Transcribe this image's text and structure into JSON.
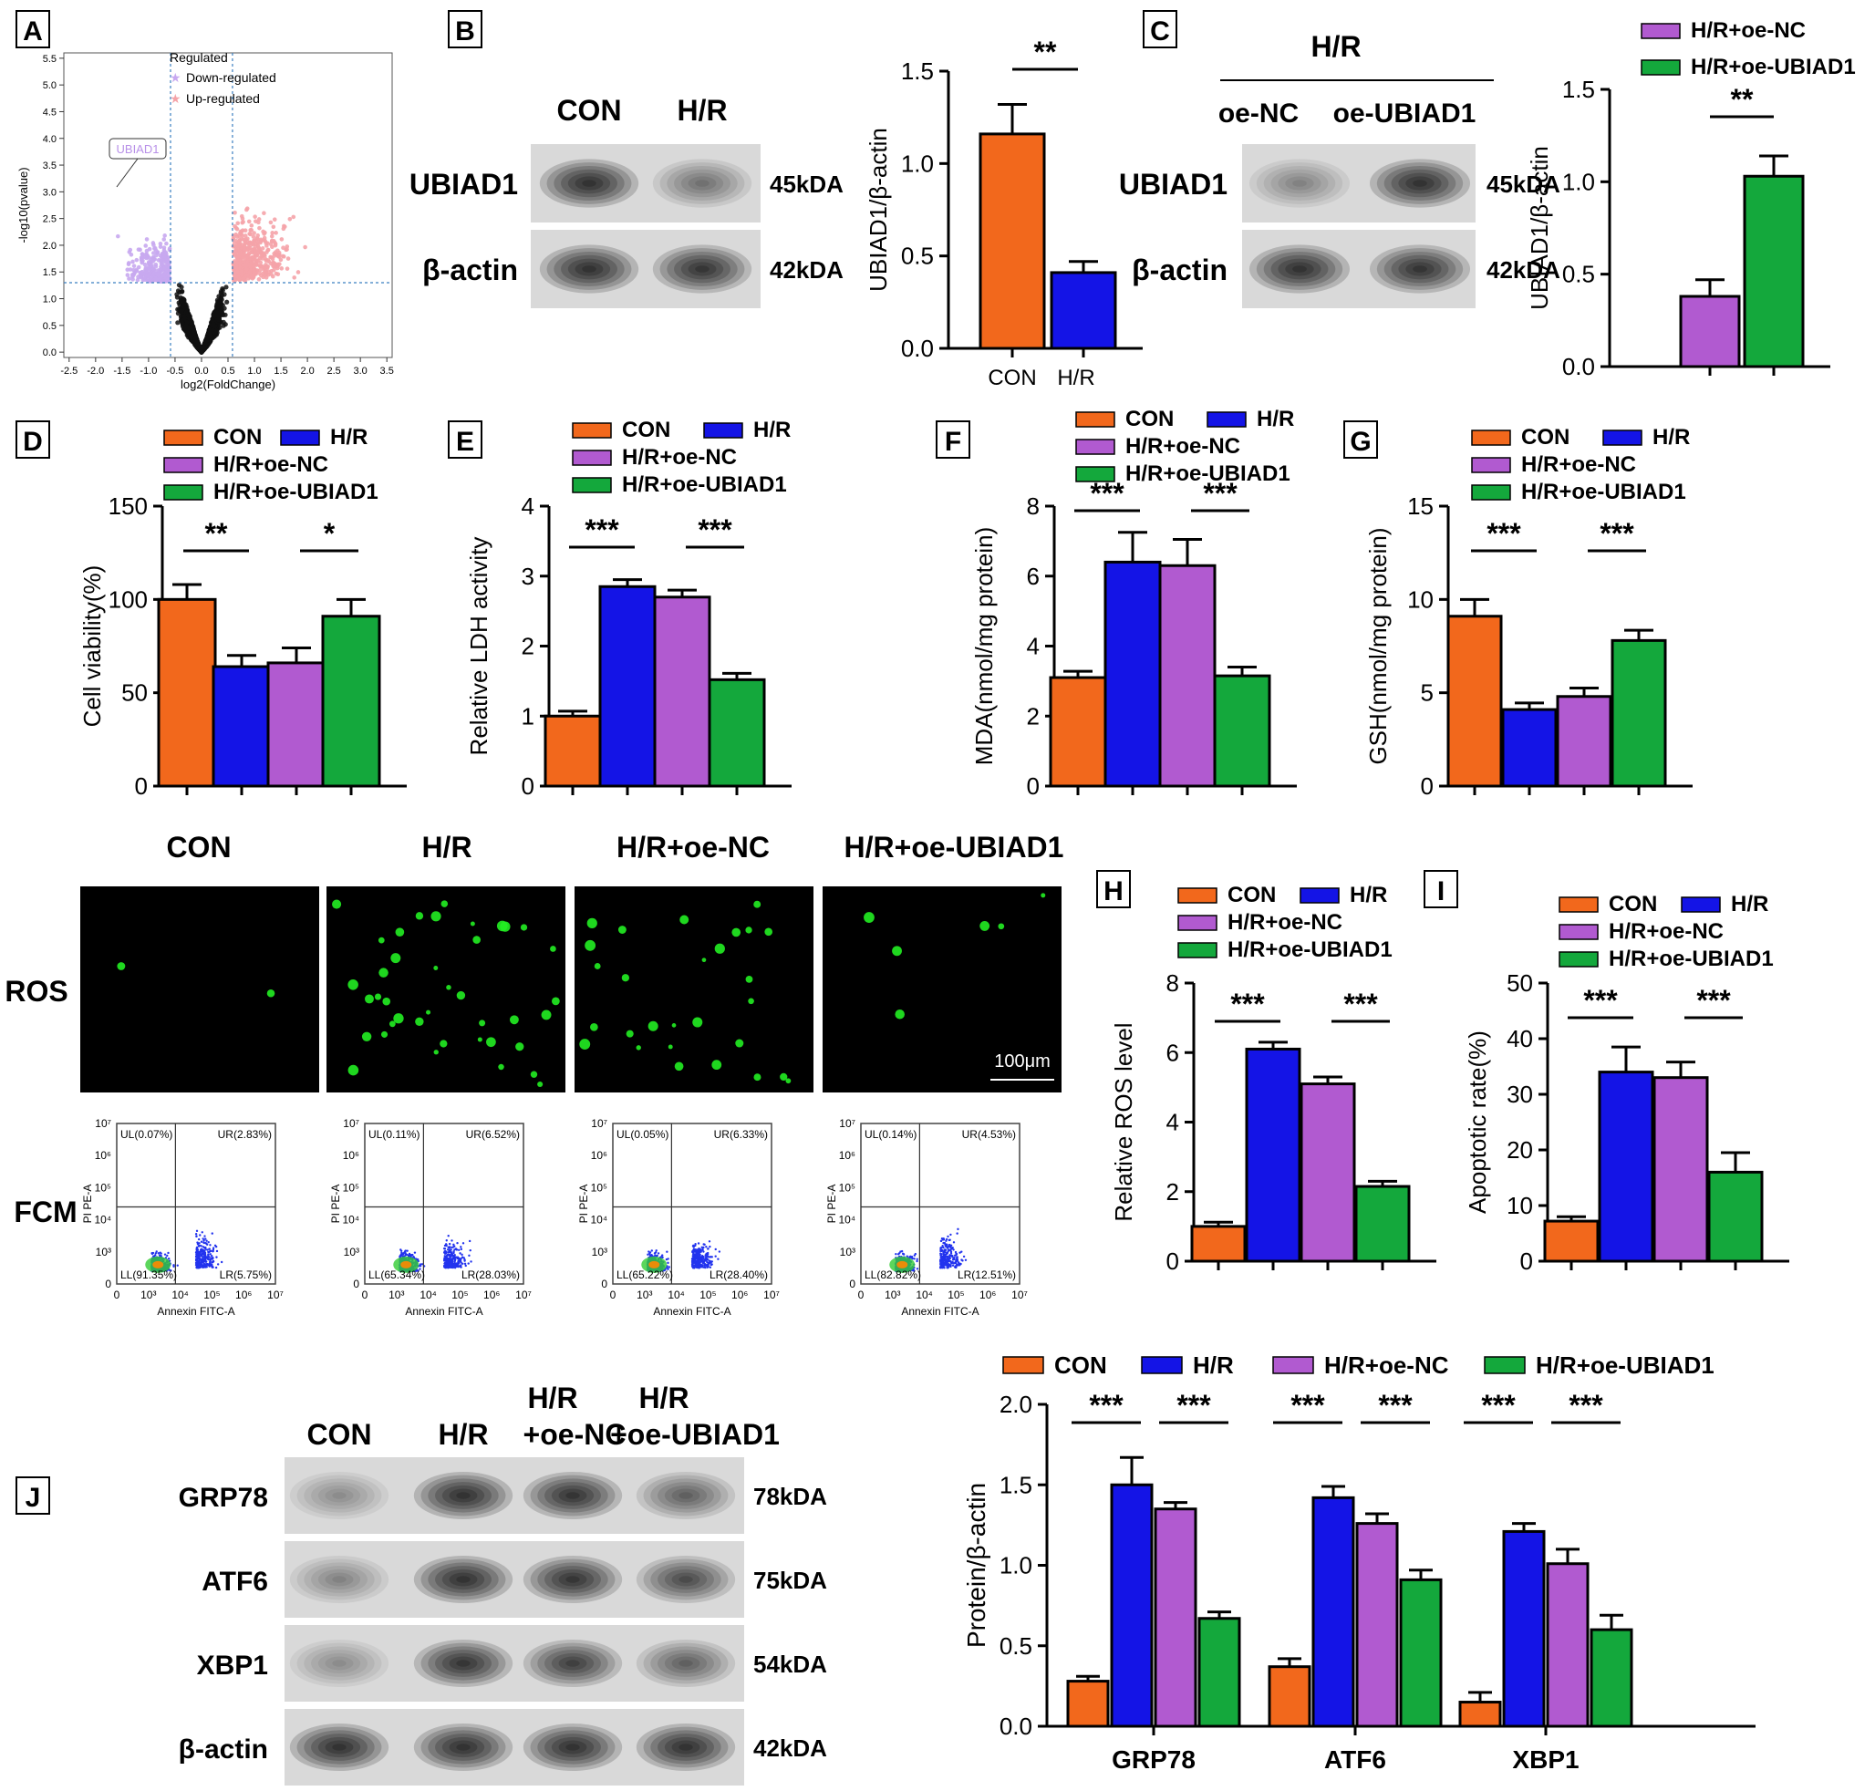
{
  "colors": {
    "CON": "#f2681c",
    "H/R": "#1414e6",
    "H/R+oe-NC": "#b15ad0",
    "H/R+oe-UBIAD1": "#14a83c",
    "up": "#f5a3a8",
    "down": "#c8a8f0",
    "black": "#000000",
    "fluor": "#22ee22"
  },
  "panels": {
    "A": "A",
    "B": "B",
    "C": "C",
    "D": "D",
    "E": "E",
    "F": "F",
    "G": "G",
    "H": "H",
    "I": "I",
    "J": "J"
  },
  "volcano": {
    "xlabel": "log2(FoldChange)",
    "ylabel": "-log10(pvalue)",
    "xticks": [
      "-2.5",
      "-2.0",
      "-1.5",
      "-1.0",
      "-0.5",
      "0.0",
      "0.5",
      "1.0",
      "1.5",
      "2.0",
      "2.5",
      "3.0",
      "3.5"
    ],
    "yticks": [
      "0.0",
      "0.5",
      "1.0",
      "1.5",
      "2.0",
      "2.5",
      "3.0",
      "3.5",
      "4.0",
      "4.5",
      "5.0",
      "5.5"
    ],
    "xlim": [
      -2.6,
      3.6
    ],
    "ylim": [
      -0.1,
      5.6
    ],
    "legend_title": "Regulated",
    "legend": [
      "Down-regulated",
      "Up-regulated"
    ],
    "gene_label": "UBIAD1",
    "thresholds": {
      "fc": [
        -0.585,
        0.585
      ],
      "p": 1.3
    }
  },
  "blotB": {
    "lanes": [
      "CON",
      "H/R"
    ],
    "rows": [
      {
        "name": "UBIAD1",
        "kda": "45kDA",
        "int": [
          0.95,
          0.45
        ]
      },
      {
        "name": "β-actin",
        "kda": "42kDA",
        "int": [
          0.95,
          0.9
        ]
      }
    ]
  },
  "blotC": {
    "header": "H/R",
    "lanes": [
      "oe-NC",
      "oe-UBIAD1"
    ],
    "rows": [
      {
        "name": "UBIAD1",
        "kda": "45kDA",
        "int": [
          0.35,
          0.95
        ]
      },
      {
        "name": "β-actin",
        "kda": "42kDA",
        "int": [
          0.95,
          0.92
        ]
      }
    ]
  },
  "blotJ": {
    "lanes": [
      "CON",
      "H/R",
      "H/R\n+oe-NC",
      "H/R\n+oe-UBIAD1"
    ],
    "rows": [
      {
        "name": "GRP78",
        "kda": "78kDA",
        "int": [
          0.3,
          0.95,
          0.92,
          0.55
        ]
      },
      {
        "name": "ATF6",
        "kda": "75kDA",
        "int": [
          0.35,
          0.95,
          0.9,
          0.7
        ]
      },
      {
        "name": "XBP1",
        "kda": "54kDA",
        "int": [
          0.3,
          0.9,
          0.8,
          0.55
        ]
      },
      {
        "name": "β-actin",
        "kda": "42kDA",
        "int": [
          0.95,
          0.95,
          0.95,
          0.95
        ]
      }
    ]
  },
  "ros": {
    "titles": [
      "CON",
      "H/R",
      "H/R+oe-NC",
      "H/R+oe-UBIAD1"
    ],
    "row_label": "ROS",
    "scale": "100μm"
  },
  "fcm": {
    "row_label": "FCM",
    "xlabel": "Annexin FITC-A",
    "ylabel": "PI PE-A",
    "ticks": [
      "0",
      "10³",
      "10⁴",
      "10⁵",
      "10⁶",
      "10⁷"
    ],
    "plots": [
      {
        "UL": "UL(0.07%)",
        "UR": "UR(2.83%)",
        "LL": "LL(91.35%)",
        "LR": "LR(5.75%)"
      },
      {
        "UL": "UL(0.11%)",
        "UR": "UR(6.52%)",
        "LL": "LL(65.34%)",
        "LR": "LR(28.03%)"
      },
      {
        "UL": "UL(0.05%)",
        "UR": "UR(6.33%)",
        "LL": "LL(65.22%)",
        "LR": "LR(28.40%)"
      },
      {
        "UL": "UL(0.14%)",
        "UR": "UR(4.53%)",
        "LL": "LL(82.82%)",
        "LR": "LR(12.51%)"
      }
    ]
  },
  "chart_data": [
    {
      "id": "B",
      "type": "bar",
      "categories": [
        "CON",
        "H/R"
      ],
      "values": [
        1.16,
        0.41
      ],
      "errors": [
        0.16,
        0.06
      ],
      "ylabel": "UBIAD1/β-actin",
      "ylim": [
        0,
        1.5
      ],
      "yticks": [
        "0.0",
        "0.5",
        "1.0",
        "1.5"
      ],
      "sig": [
        {
          "text": "**",
          "a": 0,
          "b": 1
        }
      ]
    },
    {
      "id": "C",
      "type": "bar",
      "categories": [
        "H/R+oe-NC",
        "H/R+oe-UBIAD1"
      ],
      "values": [
        0.38,
        1.03
      ],
      "errors": [
        0.09,
        0.11
      ],
      "ylabel": "UBIAD1/β-actin",
      "ylim": [
        0,
        1.5
      ],
      "yticks": [
        "0.0",
        "0.5",
        "1.0",
        "1.5"
      ],
      "legend": [
        "H/R+oe-NC",
        "H/R+oe-UBIAD1"
      ],
      "sig": [
        {
          "text": "**",
          "a": 0,
          "b": 1
        }
      ]
    },
    {
      "id": "D",
      "type": "bar",
      "categories": [
        "CON",
        "H/R",
        "H/R+oe-NC",
        "H/R+oe-UBIAD1"
      ],
      "values": [
        100,
        64,
        66,
        91
      ],
      "errors": [
        8,
        6,
        8,
        9
      ],
      "ylabel": "Cell viability(%)",
      "ylim": [
        0,
        150
      ],
      "yticks": [
        "0",
        "50",
        "100",
        "150"
      ],
      "legend": [
        "CON",
        "H/R",
        "H/R+oe-NC",
        "H/R+oe-UBIAD1"
      ],
      "sig": [
        {
          "text": "**",
          "a": 0,
          "b": 1
        },
        {
          "text": "*",
          "a": 2,
          "b": 3
        }
      ]
    },
    {
      "id": "E",
      "type": "bar",
      "categories": [
        "CON",
        "H/R",
        "H/R+oe-NC",
        "H/R+oe-UBIAD1"
      ],
      "values": [
        1.0,
        2.85,
        2.7,
        1.52
      ],
      "errors": [
        0.07,
        0.1,
        0.1,
        0.09
      ],
      "ylabel": "Relative LDH activity",
      "ylim": [
        0,
        4
      ],
      "yticks": [
        "0",
        "1",
        "2",
        "3",
        "4"
      ],
      "legend": [
        "CON",
        "H/R",
        "H/R+oe-NC",
        "H/R+oe-UBIAD1"
      ],
      "sig": [
        {
          "text": "***",
          "a": 0,
          "b": 1
        },
        {
          "text": "***",
          "a": 2,
          "b": 3
        }
      ]
    },
    {
      "id": "F",
      "type": "bar",
      "categories": [
        "CON",
        "H/R",
        "H/R+oe-NC",
        "H/R+oe-UBIAD1"
      ],
      "values": [
        3.1,
        6.4,
        6.3,
        3.15
      ],
      "errors": [
        0.18,
        0.85,
        0.75,
        0.25
      ],
      "ylabel": "MDA(nmol/mg protein)",
      "ylim": [
        0,
        8
      ],
      "yticks": [
        "0",
        "2",
        "4",
        "6",
        "8"
      ],
      "legend": [
        "CON",
        "H/R",
        "H/R+oe-NC",
        "H/R+oe-UBIAD1"
      ],
      "sig": [
        {
          "text": "***",
          "a": 0,
          "b": 1
        },
        {
          "text": "***",
          "a": 2,
          "b": 3
        }
      ]
    },
    {
      "id": "G",
      "type": "bar",
      "categories": [
        "CON",
        "H/R",
        "H/R+oe-NC",
        "H/R+oe-UBIAD1"
      ],
      "values": [
        9.1,
        4.1,
        4.8,
        7.8
      ],
      "errors": [
        0.9,
        0.35,
        0.45,
        0.55
      ],
      "ylabel": "GSH(nmol/mg protein)",
      "ylim": [
        0,
        15
      ],
      "yticks": [
        "0",
        "5",
        "10",
        "15"
      ],
      "legend": [
        "CON",
        "H/R",
        "H/R+oe-NC",
        "H/R+oe-UBIAD1"
      ],
      "sig": [
        {
          "text": "***",
          "a": 0,
          "b": 1
        },
        {
          "text": "***",
          "a": 2,
          "b": 3
        }
      ]
    },
    {
      "id": "H",
      "type": "bar",
      "categories": [
        "CON",
        "H/R",
        "H/R+oe-NC",
        "H/R+oe-UBIAD1"
      ],
      "values": [
        1.0,
        6.1,
        5.1,
        2.15
      ],
      "errors": [
        0.12,
        0.2,
        0.2,
        0.15
      ],
      "ylabel": "Relative ROS level",
      "ylim": [
        0,
        8
      ],
      "yticks": [
        "0",
        "2",
        "4",
        "6",
        "8"
      ],
      "legend": [
        "CON",
        "H/R",
        "H/R+oe-NC",
        "H/R+oe-UBIAD1"
      ],
      "sig": [
        {
          "text": "***",
          "a": 0,
          "b": 1
        },
        {
          "text": "***",
          "a": 2,
          "b": 3
        }
      ]
    },
    {
      "id": "I",
      "type": "bar",
      "categories": [
        "CON",
        "H/R",
        "H/R+oe-NC",
        "H/R+oe-UBIAD1"
      ],
      "values": [
        7.2,
        34,
        33,
        16
      ],
      "errors": [
        0.8,
        4.5,
        2.8,
        3.5
      ],
      "ylabel": "Apoptotic rate(%)",
      "ylim": [
        0,
        50
      ],
      "yticks": [
        "0",
        "10",
        "20",
        "30",
        "40",
        "50"
      ],
      "legend": [
        "CON",
        "H/R",
        "H/R+oe-NC",
        "H/R+oe-UBIAD1"
      ],
      "sig": [
        {
          "text": "***",
          "a": 0,
          "b": 1
        },
        {
          "text": "***",
          "a": 2,
          "b": 3
        }
      ]
    },
    {
      "id": "J",
      "type": "bar",
      "groups": [
        "GRP78",
        "ATF6",
        "XBP1"
      ],
      "series": [
        {
          "name": "CON",
          "values": [
            0.28,
            0.37,
            0.15
          ],
          "errors": [
            0.03,
            0.05,
            0.06
          ]
        },
        {
          "name": "H/R",
          "values": [
            1.5,
            1.42,
            1.21
          ],
          "errors": [
            0.17,
            0.07,
            0.05
          ]
        },
        {
          "name": "H/R+oe-NC",
          "values": [
            1.35,
            1.26,
            1.01
          ],
          "errors": [
            0.04,
            0.06,
            0.09
          ]
        },
        {
          "name": "H/R+oe-UBIAD1",
          "values": [
            0.67,
            0.91,
            0.6
          ],
          "errors": [
            0.04,
            0.06,
            0.09
          ]
        }
      ],
      "ylabel": "Protein/β-actin",
      "ylim": [
        0,
        2.0
      ],
      "yticks": [
        "0.0",
        "0.5",
        "1.0",
        "1.5",
        "2.0"
      ],
      "sig_text": "***"
    }
  ]
}
